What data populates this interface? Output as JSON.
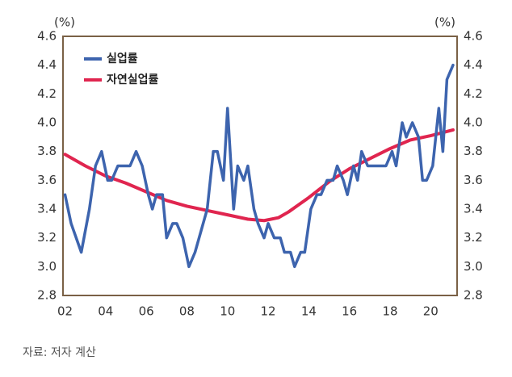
{
  "chart_data": {
    "type": "line",
    "y_label": "(%)",
    "y2_label": "(%)",
    "source": "자료: 저자 계산",
    "xlim": [
      2001.9,
      2021.3
    ],
    "xticks": [
      {
        "value": 2002,
        "label": "02"
      },
      {
        "value": 2004,
        "label": "04"
      },
      {
        "value": 2006,
        "label": "06"
      },
      {
        "value": 2008,
        "label": "08"
      },
      {
        "value": 2010,
        "label": "10"
      },
      {
        "value": 2012,
        "label": "12"
      },
      {
        "value": 2014,
        "label": "14"
      },
      {
        "value": 2016,
        "label": "16"
      },
      {
        "value": 2018,
        "label": "18"
      },
      {
        "value": 2020,
        "label": "20"
      }
    ],
    "ylim": [
      2.8,
      4.6
    ],
    "yticks": [
      2.8,
      {
        "value": 3,
        "label": "3.0"
      },
      3.2,
      3.4,
      3.6,
      3.8,
      {
        "value": 4,
        "label": "4.0"
      },
      4.2,
      4.4,
      4.6
    ],
    "y2lim": [
      2.8,
      4.6
    ],
    "y2ticks": [
      2.8,
      {
        "value": 3,
        "label": "3.0"
      },
      3.2,
      3.4,
      3.6,
      3.8,
      {
        "value": 4,
        "label": "4.0"
      },
      4.2,
      4.4,
      4.6
    ],
    "legend": "upper-left",
    "series": [
      {
        "name": "실업률",
        "color": "#3d64ae",
        "x": [
          2002.0,
          2002.3,
          2002.8,
          2003.2,
          2003.5,
          2003.8,
          2004.1,
          2004.3,
          2004.6,
          2005.2,
          2005.5,
          2005.8,
          2006.1,
          2006.3,
          2006.5,
          2006.8,
          2007.0,
          2007.3,
          2007.5,
          2007.8,
          2008.1,
          2008.4,
          2009.0,
          2009.3,
          2009.5,
          2009.8,
          2010.0,
          2010.3,
          2010.5,
          2010.8,
          2011.0,
          2011.3,
          2011.5,
          2011.8,
          2012.0,
          2012.3,
          2012.6,
          2012.8,
          2013.1,
          2013.3,
          2013.6,
          2013.8,
          2014.1,
          2014.4,
          2014.6,
          2014.9,
          2015.2,
          2015.4,
          2015.7,
          2015.9,
          2016.2,
          2016.4,
          2016.6,
          2016.9,
          2017.2,
          2017.5,
          2017.8,
          2018.1,
          2018.3,
          2018.6,
          2018.8,
          2019.1,
          2019.4,
          2019.6,
          2019.8,
          2020.1,
          2020.4,
          2020.6,
          2020.8,
          2021.1
        ],
        "values": [
          3.5,
          3.3,
          3.1,
          3.4,
          3.7,
          3.8,
          3.6,
          3.6,
          3.7,
          3.7,
          3.8,
          3.7,
          3.5,
          3.4,
          3.5,
          3.5,
          3.2,
          3.3,
          3.3,
          3.2,
          3.0,
          3.1,
          3.4,
          3.8,
          3.8,
          3.6,
          4.1,
          3.4,
          3.7,
          3.6,
          3.7,
          3.4,
          3.3,
          3.2,
          3.3,
          3.2,
          3.2,
          3.1,
          3.1,
          3.0,
          3.1,
          3.1,
          3.4,
          3.5,
          3.5,
          3.6,
          3.6,
          3.7,
          3.6,
          3.5,
          3.7,
          3.6,
          3.8,
          3.7,
          3.7,
          3.7,
          3.7,
          3.8,
          3.7,
          4.0,
          3.9,
          4.0,
          3.9,
          3.6,
          3.6,
          3.7,
          4.1,
          3.8,
          4.3,
          4.4
        ]
      },
      {
        "name": "자연실업률",
        "color": "#e0254f",
        "x": [
          2002.0,
          2003.0,
          2004.0,
          2005.0,
          2006.0,
          2007.0,
          2008.0,
          2009.0,
          2010.0,
          2011.0,
          2011.8,
          2012.5,
          2013.0,
          2014.0,
          2015.0,
          2016.0,
          2017.0,
          2018.0,
          2019.0,
          2020.0,
          2021.1
        ],
        "values": [
          3.78,
          3.7,
          3.63,
          3.58,
          3.52,
          3.46,
          3.42,
          3.39,
          3.36,
          3.33,
          3.32,
          3.34,
          3.38,
          3.48,
          3.59,
          3.68,
          3.75,
          3.82,
          3.88,
          3.91,
          3.95
        ]
      }
    ]
  }
}
